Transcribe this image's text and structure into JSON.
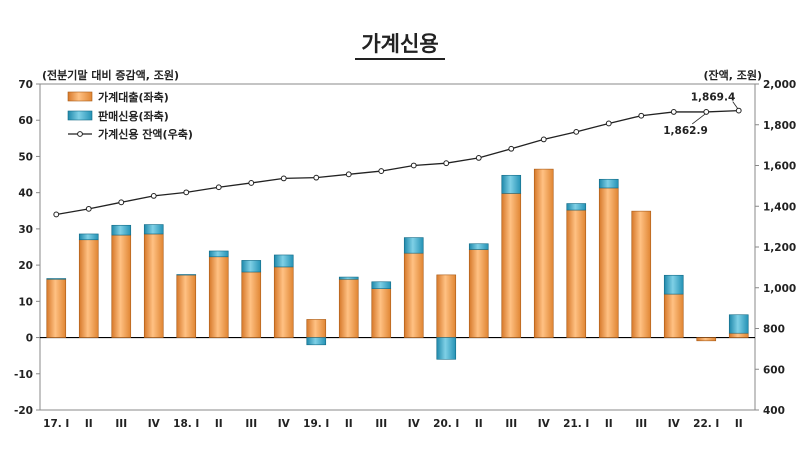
{
  "chart_data": {
    "type": "bar",
    "title": "가계신용",
    "left_axis_label": "(전분기말 대비 증감액, 조원)",
    "right_axis_label": "(잔액, 조원)",
    "categories": [
      "17. I",
      "II",
      "III",
      "IV",
      "18. I",
      "II",
      "III",
      "IV",
      "19. I",
      "II",
      "III",
      "IV",
      "20. I",
      "II",
      "III",
      "IV",
      "21. I",
      "II",
      "III",
      "IV",
      "22. I",
      "II"
    ],
    "series": [
      {
        "name": "가계대출(좌축)",
        "axis": "left",
        "stacked": true,
        "color": "#f7a24a",
        "values": [
          16.1,
          27.0,
          28.3,
          28.6,
          17.3,
          22.3,
          18.1,
          19.5,
          5.0,
          16.1,
          13.5,
          23.3,
          17.3,
          24.3,
          39.8,
          46.5,
          35.2,
          41.3,
          34.9,
          12.0,
          -0.9,
          1.2
        ]
      },
      {
        "name": "판매신용(좌축)",
        "axis": "left",
        "stacked": true,
        "color": "#33a8c8",
        "values": [
          0.2,
          1.6,
          2.7,
          2.6,
          0.1,
          1.6,
          3.2,
          3.3,
          -2.0,
          0.6,
          1.9,
          4.3,
          -6.0,
          1.6,
          5.0,
          0.0,
          1.8,
          2.4,
          0.0,
          5.2,
          0.0,
          5.1
        ]
      },
      {
        "name": "가계신용 잔액(우축)",
        "axis": "right",
        "type": "line",
        "color": "#222222",
        "values": [
          1359.7,
          1387.3,
          1419.3,
          1450.8,
          1468.2,
          1493.2,
          1514.4,
          1536.7,
          1540.4,
          1556.7,
          1572.6,
          1600.1,
          1611.3,
          1637.3,
          1682.1,
          1728.1,
          1765.0,
          1806.4,
          1844.3,
          1862.9,
          1862.9,
          1869.4
        ]
      }
    ],
    "left_ylim": [
      -20,
      70
    ],
    "left_ticks": [
      "-20",
      "-10",
      "0",
      "10",
      "20",
      "30",
      "40",
      "50",
      "60",
      "70"
    ],
    "right_ylim": [
      400,
      2000
    ],
    "right_ticks": [
      "400",
      "600",
      "800",
      "1,000",
      "1,200",
      "1,400",
      "1,600",
      "1,800",
      "2,000"
    ],
    "annotations": [
      {
        "label": "1,869.4",
        "category_index": 21
      },
      {
        "label": "1,862.9",
        "category_index": 20
      }
    ],
    "legend_position": "top-left",
    "grid": false
  }
}
